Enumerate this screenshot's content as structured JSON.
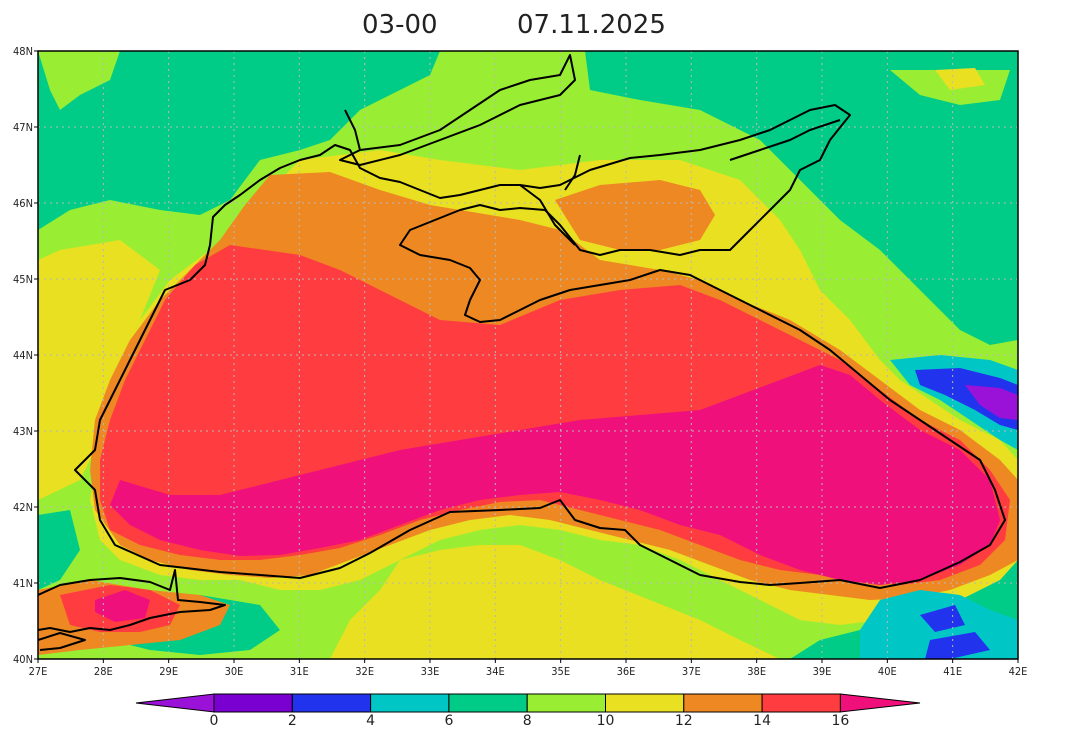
{
  "title": {
    "time": "03-00",
    "date": "07.11.2025"
  },
  "map": {
    "lon_range": [
      27,
      42
    ],
    "lat_range": [
      40,
      48
    ],
    "lon_ticks": [
      "27E",
      "28E",
      "29E",
      "30E",
      "31E",
      "32E",
      "33E",
      "34E",
      "35E",
      "36E",
      "37E",
      "38E",
      "39E",
      "40E",
      "41E",
      "42E"
    ],
    "lat_ticks": [
      "40N",
      "41N",
      "42N",
      "43N",
      "44N",
      "45N",
      "46N",
      "47N",
      "48N"
    ],
    "grid": "dotted"
  },
  "colorbar": {
    "labels": [
      "0",
      "2",
      "4",
      "6",
      "8",
      "10",
      "12",
      "14",
      "16"
    ],
    "colors": [
      "#9a12d8",
      "#7a00d2",
      "#2233ee",
      "#00c6c6",
      "#00cc88",
      "#99ee33",
      "#e8e020",
      "#ee8822",
      "#ff3c40",
      "#f0107c"
    ]
  }
}
